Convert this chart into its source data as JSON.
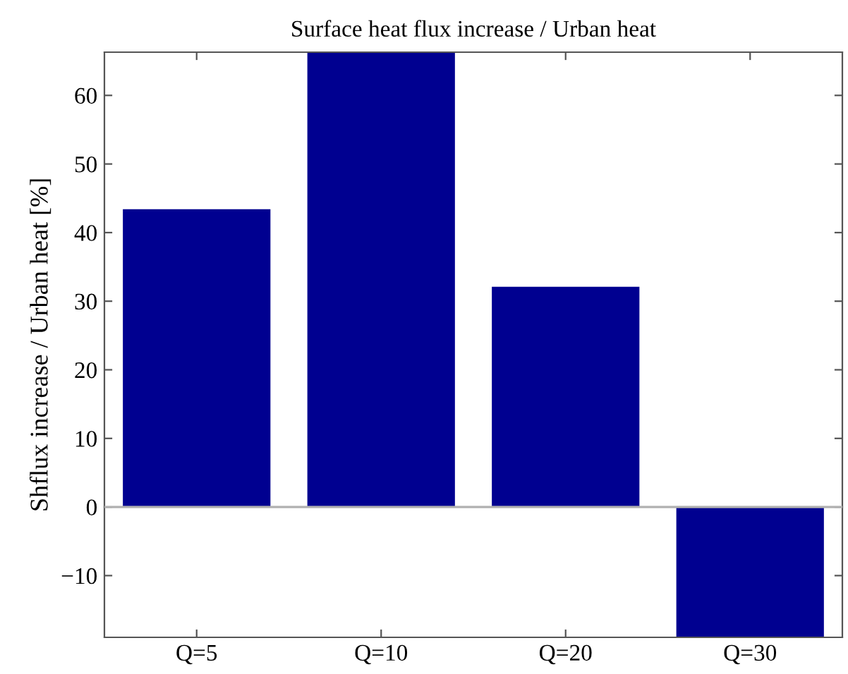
{
  "chart_data": {
    "type": "bar",
    "title": "Surface heat flux increase / Urban heat",
    "ylabel": "Shflux increase / Urban heat [%]",
    "categories": [
      "Q=5",
      "Q=10",
      "Q=20",
      "Q=30"
    ],
    "values": [
      43.4,
      66.3,
      32.1,
      -19
    ],
    "color": "#000090",
    "ylim": [
      -19,
      66.3
    ],
    "yticks": [
      -10,
      0,
      10,
      20,
      30,
      40,
      50,
      60
    ],
    "ref_lines": [
      {
        "axis": "y",
        "value": 0,
        "color": "#b0b0b0"
      }
    ]
  }
}
